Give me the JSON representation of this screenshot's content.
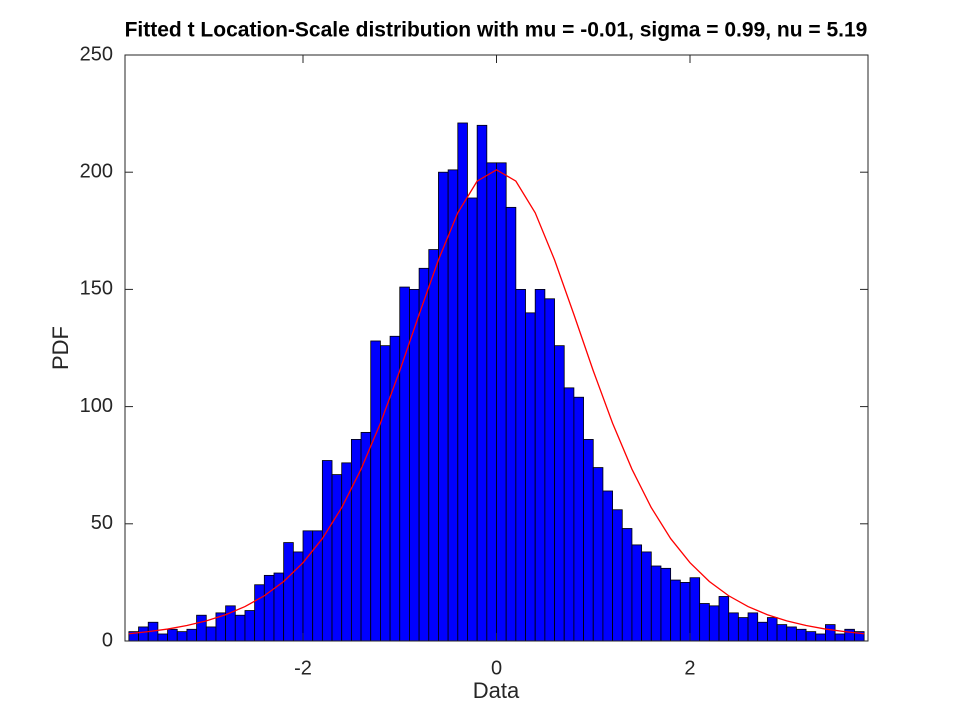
{
  "chart_data": {
    "type": "histogram",
    "title": "Fitted t Location-Scale distribution with mu = -0.01, sigma = 0.99, nu = 5.19",
    "xlabel": "Data",
    "ylabel": "PDF",
    "bins": [
      -3.8,
      -3.7,
      -3.6,
      -3.5,
      -3.4,
      -3.3,
      -3.2,
      -3.1,
      -3.0,
      -2.9,
      -2.8,
      -2.7,
      -2.6,
      -2.5,
      -2.4,
      -2.3,
      -2.2,
      -2.1,
      -2.0,
      -1.9,
      -1.8,
      -1.7,
      -1.6,
      -1.5,
      -1.4,
      -1.3,
      -1.2,
      -1.1,
      -1.0,
      -0.9,
      -0.8,
      -0.7,
      -0.6,
      -0.5,
      -0.4,
      -0.3,
      -0.2,
      -0.1,
      0.0,
      0.1,
      0.2,
      0.3,
      0.4,
      0.5,
      0.6,
      0.7,
      0.8,
      0.9,
      1.0,
      1.1,
      1.2,
      1.3,
      1.4,
      1.5,
      1.6,
      1.7,
      1.8,
      1.9,
      2.0,
      2.1,
      2.2,
      2.3,
      2.4,
      2.5,
      2.6,
      2.7,
      2.8,
      2.9,
      3.0,
      3.1,
      3.2,
      3.3,
      3.4,
      3.5,
      3.6,
      3.7,
      3.8
    ],
    "values": [
      4,
      6,
      8,
      3,
      5,
      4,
      5,
      11,
      6,
      12,
      15,
      11,
      13,
      24,
      28,
      29,
      42,
      38,
      47,
      47,
      77,
      71,
      76,
      86,
      89,
      128,
      126,
      130,
      151,
      150,
      159,
      167,
      200,
      201,
      221,
      189,
      220,
      204,
      204,
      185,
      150,
      140,
      150,
      146,
      126,
      108,
      104,
      86,
      74,
      64,
      56,
      48,
      41,
      38,
      32,
      31,
      26,
      25,
      27,
      16,
      15,
      19,
      12,
      10,
      12,
      8,
      10,
      7,
      6,
      5,
      4,
      3,
      7,
      3,
      5,
      4
    ],
    "color": "#0000ff",
    "edgecolor": "#000000",
    "curve": {
      "type": "line",
      "color": "#ff0000",
      "x": [
        -3.8,
        -3.6,
        -3.4,
        -3.2,
        -3.0,
        -2.8,
        -2.6,
        -2.4,
        -2.2,
        -2.0,
        -1.8,
        -1.6,
        -1.4,
        -1.2,
        -1.0,
        -0.8,
        -0.6,
        -0.4,
        -0.2,
        0,
        0.2,
        0.4,
        0.6,
        0.8,
        1.0,
        1.2,
        1.4,
        1.6,
        1.8,
        2.0,
        2.2,
        2.4,
        2.6,
        2.8,
        3.0,
        3.2,
        3.4,
        3.6,
        3.8
      ],
      "values": [
        3.1,
        4.0,
        5.1,
        6.6,
        8.6,
        11.2,
        14.7,
        19.3,
        25.4,
        33.4,
        43.7,
        56.9,
        73.3,
        92.9,
        115.3,
        139.3,
        162.6,
        182.7,
        196.2,
        201,
        196.2,
        182.7,
        162.6,
        139.3,
        115.3,
        92.9,
        73.3,
        56.9,
        43.7,
        33.4,
        25.4,
        19.3,
        14.7,
        11.2,
        8.6,
        6.6,
        5.1,
        4.0,
        3.1
      ]
    },
    "xlim": [
      -3.84,
      3.84
    ],
    "ylim": [
      0,
      250
    ],
    "xticks": [
      -2,
      0,
      2
    ],
    "yticks": [
      0,
      50,
      100,
      150,
      200,
      250
    ]
  }
}
